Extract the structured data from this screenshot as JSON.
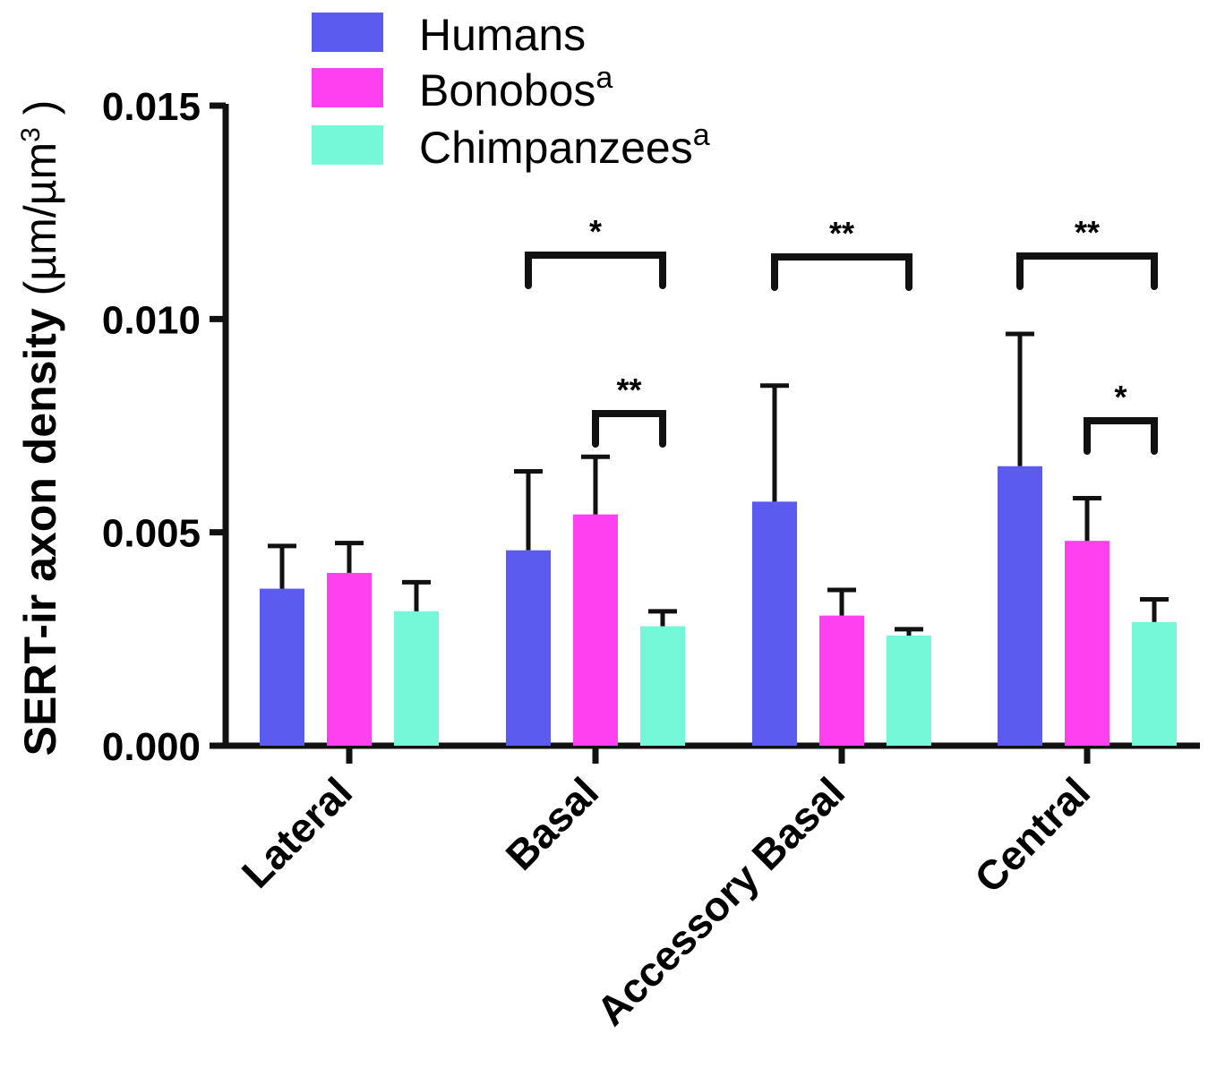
{
  "chart_data": {
    "type": "bar",
    "ylabel": "SERT-ir axon density",
    "ylabel_unit": {
      "open": "(",
      "base": "µm/µm",
      "sup": "3",
      "close": ")"
    },
    "categories": [
      "Lateral",
      "Basal",
      "Accessory Basal",
      "Central"
    ],
    "series": [
      {
        "name": "Humans",
        "superscript": "",
        "color": "#5b5bf0",
        "values": [
          0.00368,
          0.00458,
          0.00572,
          0.00655
        ],
        "errors": [
          0.001,
          0.00185,
          0.00272,
          0.0031
        ]
      },
      {
        "name": "Bonobos",
        "superscript": "a",
        "color": "#ff40f0",
        "values": [
          0.00405,
          0.00542,
          0.00305,
          0.0048
        ],
        "errors": [
          0.0007,
          0.00135,
          0.0006,
          0.001
        ]
      },
      {
        "name": "Chimpanzees",
        "superscript": "a",
        "color": "#75f8d8",
        "values": [
          0.00315,
          0.0028,
          0.00258,
          0.0029
        ],
        "errors": [
          0.00068,
          0.00035,
          0.00015,
          0.00053
        ]
      }
    ],
    "ylim": [
      0,
      0.015
    ],
    "yticks": [
      "0.000",
      "0.005",
      "0.010",
      "0.015"
    ],
    "ytick_values": [
      0,
      0.005,
      0.01,
      0.015
    ],
    "legend_position": "top-center",
    "grid": false,
    "significance": [
      {
        "category": 1,
        "from_series": 0,
        "to_series": 2,
        "label": "*"
      },
      {
        "category": 1,
        "from_series": 1,
        "to_series": 2,
        "label": "**"
      },
      {
        "category": 2,
        "from_series": 0,
        "to_series": 2,
        "label": "**"
      },
      {
        "category": 3,
        "from_series": 0,
        "to_series": 2,
        "label": "**"
      },
      {
        "category": 3,
        "from_series": 1,
        "to_series": 2,
        "label": "*"
      }
    ]
  }
}
